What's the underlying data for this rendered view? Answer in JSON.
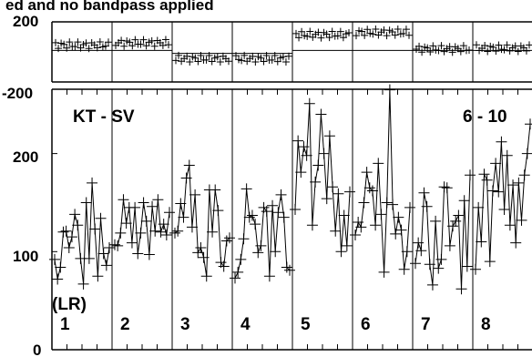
{
  "chart_data": {
    "type": "scatter",
    "title": "ed and no bandpass applied",
    "baseline_label": "KT - SV",
    "channel_range_label": "6 - 10",
    "polarization_label": "(LR)",
    "panels": [
      "1",
      "2",
      "3",
      "4",
      "5",
      "6",
      "7",
      "8"
    ],
    "phase": {
      "yticks": [
        "200",
        "-200"
      ],
      "ylim": [
        -200,
        200
      ],
      "offsets": [
        45,
        60,
        -45,
        -45,
        115,
        130,
        20,
        25
      ],
      "scatter": 22
    },
    "amplitude": {
      "yticks": [
        "200",
        "100",
        "0"
      ],
      "ylim": [
        0,
        260
      ],
      "series": [
        [
          92,
          72,
          84,
          120,
          121,
          104,
          115,
          138,
          127,
          93,
          67,
          150,
          93,
          170,
          123,
          75,
          134,
          98,
          86,
          104
        ],
        [
          107,
          106,
          119,
          153,
          129,
          145,
          109,
          145,
          98,
          119,
          150,
          131,
          97,
          146,
          121,
          153,
          120,
          128,
          117,
          140
        ],
        [
          119,
          121,
          149,
          135,
          175,
          188,
          125,
          158,
          99,
          104,
          94,
          75,
          163,
          120,
          163,
          142,
          89,
          85,
          111,
          114
        ],
        [
          73,
          79,
          92,
          113,
          164,
          135,
          137,
          128,
          99,
          106,
          145,
          141,
          75,
          147,
          100,
          140,
          158,
          135,
          84,
          81
        ],
        [
          143,
          213,
          181,
          207,
          198,
          251,
          127,
          171,
          188,
          240,
          200,
          154,
          218,
          166,
          121,
          159,
          100,
          137,
          106,
          161
        ],
        [
          117,
          130,
          125,
          150,
          181,
          165,
          162,
          127,
          190,
          138,
          79,
          150,
          265,
          148,
          118,
          135,
          122,
          82,
          100,
          145
        ],
        [
          88,
          109,
          101,
          160,
          146,
          87,
          66,
          131,
          83,
          92,
          166,
          165,
          106,
          126,
          131,
          137,
          62,
          152,
          85,
          178
        ],
        [
          82,
          145,
          110,
          179,
          173,
          90,
          162,
          190,
          161,
          212,
          143,
          198,
          127,
          168,
          109,
          170,
          132,
          178,
          200,
          230
        ]
      ]
    }
  }
}
